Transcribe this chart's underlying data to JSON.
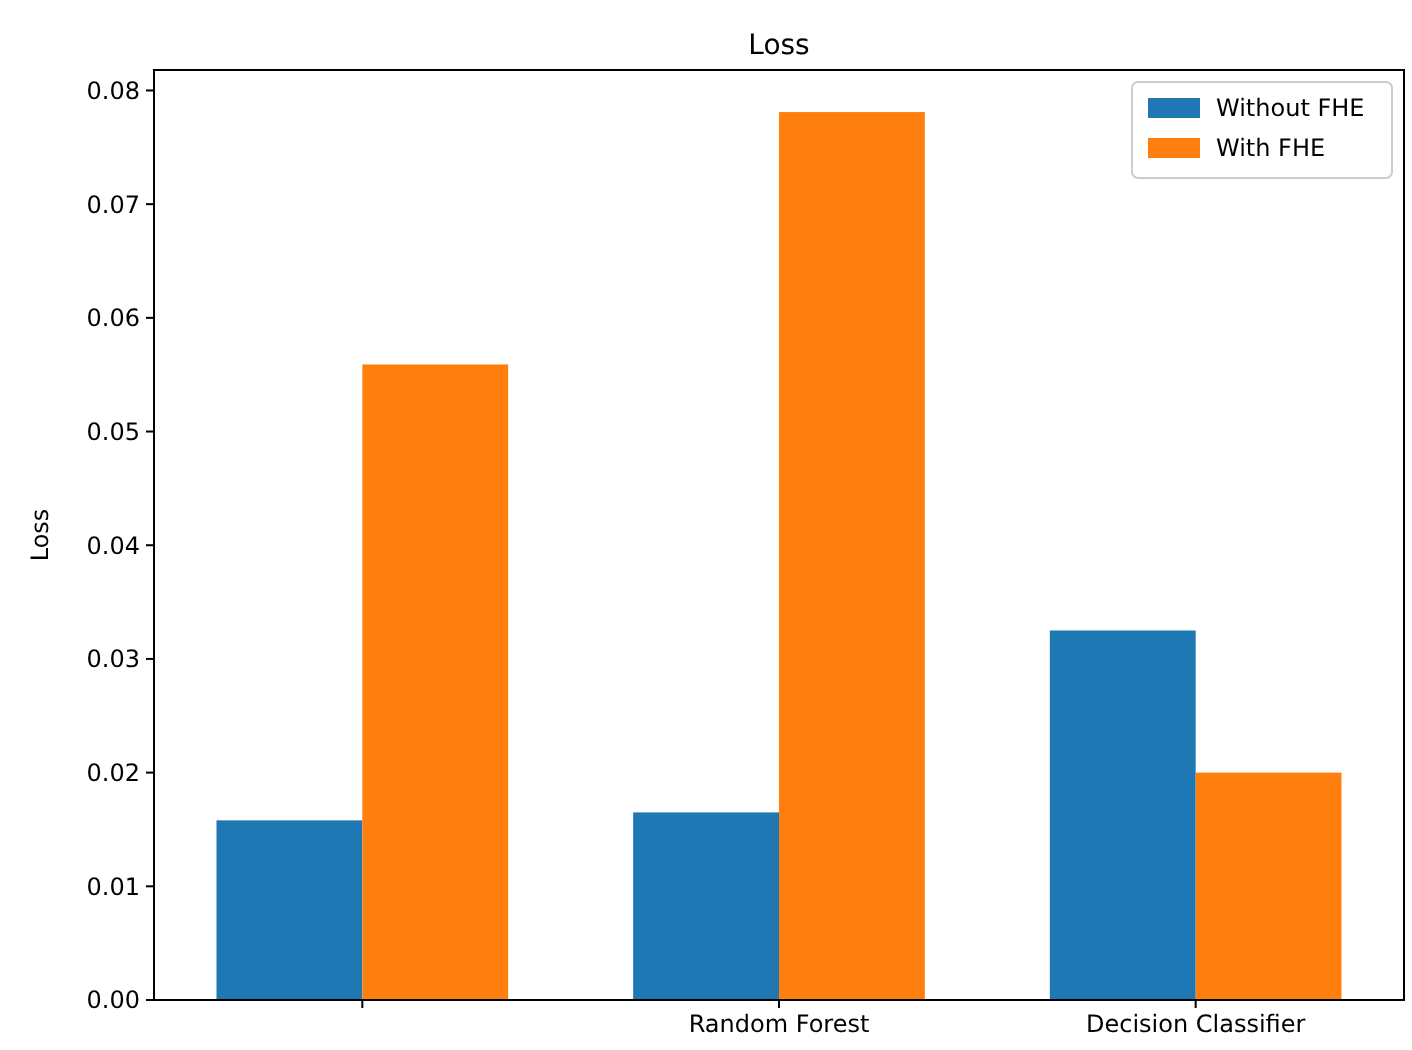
{
  "chart_data": {
    "type": "bar",
    "title": "Loss",
    "ylabel": "Loss",
    "categories": [
      null,
      "Random Forest",
      "Decision Classifier"
    ],
    "series": [
      {
        "name": "Without FHE",
        "color": "#1f77b4",
        "values": [
          0.0158,
          0.0165,
          0.0325
        ]
      },
      {
        "name": "With FHE",
        "color": "#ff7f0e",
        "values": [
          0.0559,
          0.0781,
          0.02
        ]
      }
    ],
    "ylim": [
      0,
      0.0818
    ],
    "yticks": [
      {
        "value": 0,
        "label": "0.00"
      },
      {
        "value": 0.01,
        "label": "0.01"
      },
      {
        "value": 0.02,
        "label": "0.02"
      },
      {
        "value": 0.03,
        "label": "0.03"
      },
      {
        "value": 0.04,
        "label": "0.04"
      },
      {
        "value": 0.05,
        "label": "0.05"
      },
      {
        "value": 0.06,
        "label": "0.06"
      },
      {
        "value": 0.07,
        "label": "0.07"
      },
      {
        "value": 0.08,
        "label": "0.08"
      }
    ],
    "grid": false,
    "legend": "top right"
  }
}
